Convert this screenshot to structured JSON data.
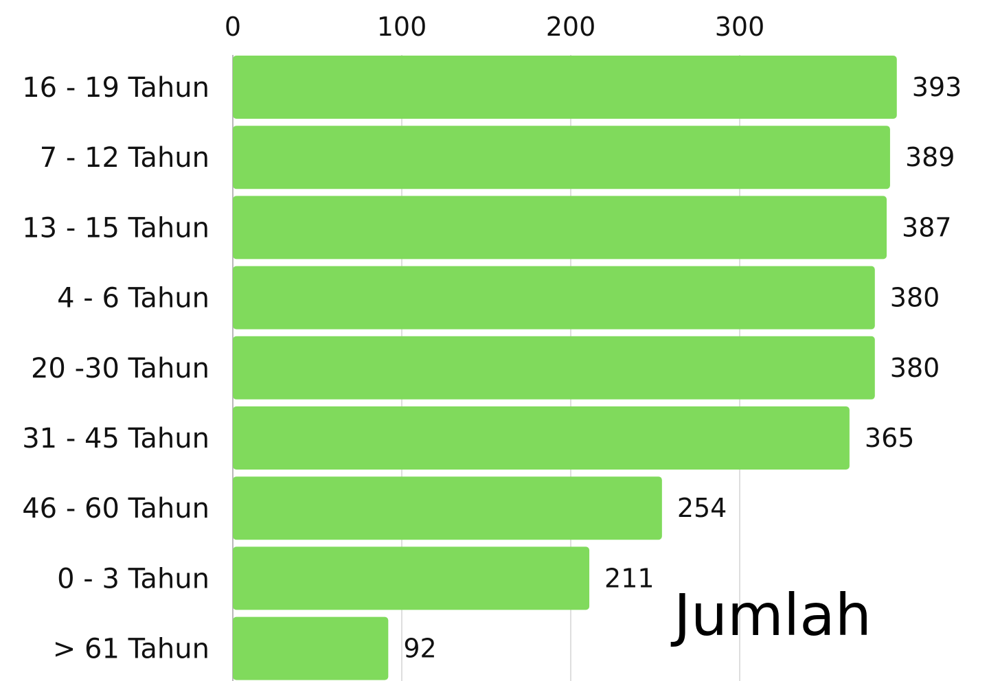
{
  "chart_data": {
    "type": "bar",
    "orientation": "horizontal",
    "categories": [
      "16 - 19 Tahun",
      "7 - 12 Tahun",
      "13 - 15 Tahun",
      "4 - 6 Tahun",
      "20 -30 Tahun",
      "31 - 45 Tahun",
      "46 - 60 Tahun",
      "0 - 3 Tahun",
      "> 61 Tahun"
    ],
    "series": [
      {
        "name": "Jumlah",
        "values": [
          393,
          389,
          387,
          380,
          380,
          365,
          254,
          211,
          92
        ],
        "color": "#80da5c"
      }
    ],
    "x_ticks": [
      0,
      100,
      200,
      300
    ],
    "xlim": [
      0,
      400
    ],
    "x_axis_position": "top",
    "grid": true,
    "grid_color": "#cccccc",
    "data_labels": true,
    "legend_position": "bottom-right"
  }
}
